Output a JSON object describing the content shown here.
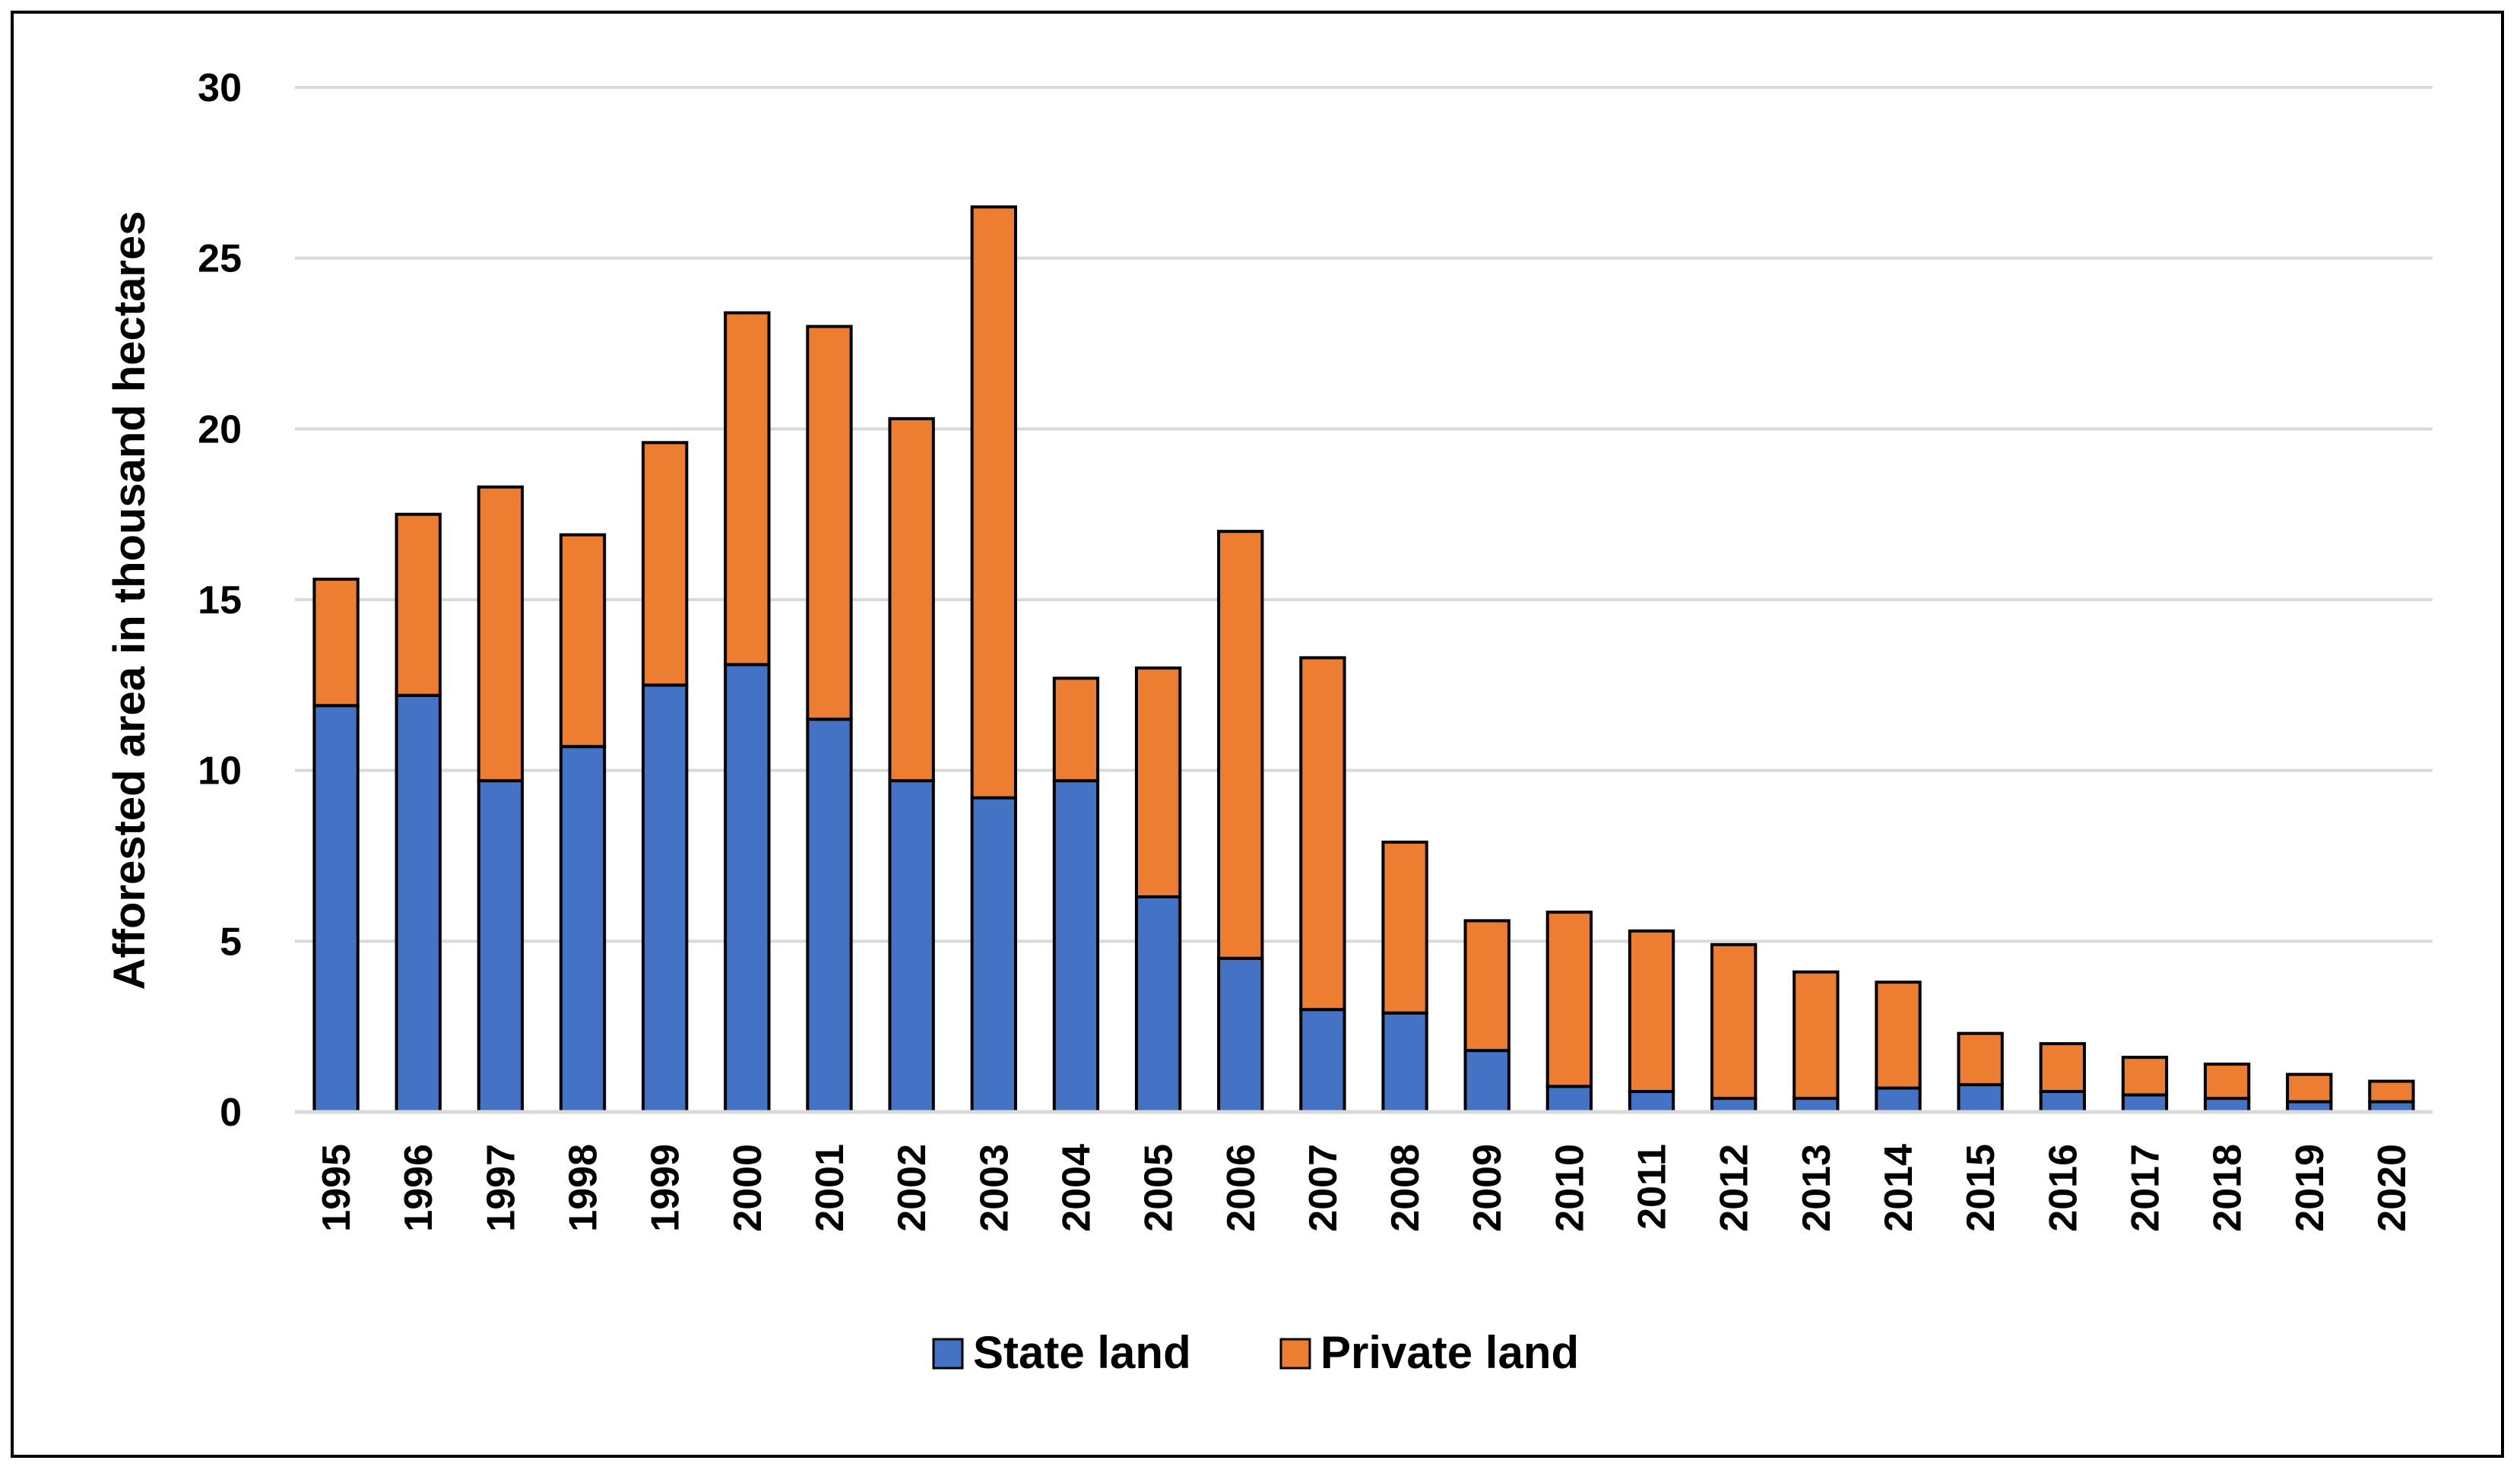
{
  "chart_data": {
    "type": "bar",
    "stacked": true,
    "title": "",
    "xlabel": "",
    "ylabel": "Afforested area in thousand hectares",
    "ylim": [
      0,
      30
    ],
    "yticks": [
      "0",
      "5",
      "10",
      "15",
      "20",
      "25",
      "30"
    ],
    "grid": true,
    "legend_position": "bottom",
    "categories": [
      "1995",
      "1996",
      "1997",
      "1998",
      "1999",
      "2000",
      "2001",
      "2002",
      "2003",
      "2004",
      "2005",
      "2006",
      "2007",
      "2008",
      "2009",
      "2010",
      "2011",
      "2012",
      "2013",
      "2014",
      "2015",
      "2016",
      "2017",
      "2018",
      "2019",
      "2020"
    ],
    "series": [
      {
        "name": "State land",
        "color": "#4472C4",
        "values": [
          11.9,
          12.2,
          9.7,
          10.7,
          12.5,
          13.1,
          11.5,
          9.7,
          9.2,
          9.7,
          6.3,
          4.5,
          3.0,
          2.9,
          1.8,
          0.75,
          0.6,
          0.4,
          0.4,
          0.7,
          0.8,
          0.6,
          0.5,
          0.4,
          0.3,
          0.3
        ]
      },
      {
        "name": "Private land",
        "color": "#ED7D31",
        "values": [
          3.7,
          5.3,
          8.6,
          6.2,
          7.1,
          10.3,
          11.5,
          10.6,
          17.3,
          3.0,
          6.7,
          12.5,
          10.3,
          5.0,
          3.8,
          5.1,
          4.7,
          4.5,
          3.7,
          3.1,
          1.5,
          1.4,
          1.1,
          1.0,
          0.8,
          0.6
        ]
      }
    ]
  }
}
